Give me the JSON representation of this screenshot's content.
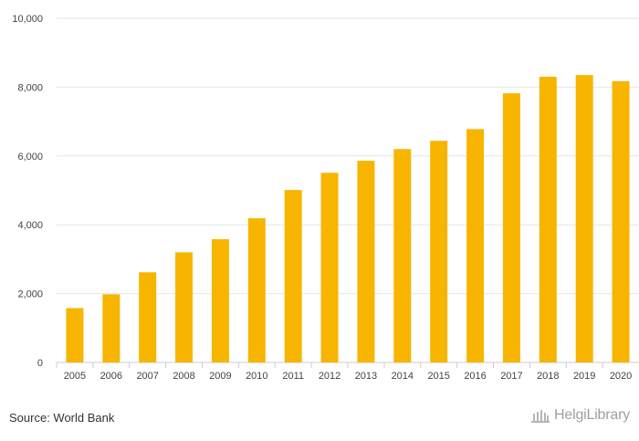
{
  "chart_data": {
    "type": "bar",
    "categories": [
      "2005",
      "2006",
      "2007",
      "2008",
      "2009",
      "2010",
      "2011",
      "2012",
      "2013",
      "2014",
      "2015",
      "2016",
      "2017",
      "2018",
      "2019",
      "2020"
    ],
    "values": [
      1580,
      1980,
      2620,
      3200,
      3580,
      4190,
      5010,
      5510,
      5860,
      6200,
      6440,
      6780,
      7820,
      8300,
      8350,
      8170
    ],
    "ylim": [
      0,
      10000
    ],
    "yticks": [
      0,
      2000,
      4000,
      6000,
      8000,
      10000
    ],
    "ytick_labels": [
      "0",
      "2,000",
      "4,000",
      "6,000",
      "8,000",
      "10,000"
    ],
    "grid": true,
    "bar_color": "#F7B500"
  },
  "footer": {
    "source": "Source: World Bank",
    "brand": "HelgiLibrary"
  },
  "colors": {
    "grid": "#e6e6e6",
    "axis": "#cccccc"
  }
}
